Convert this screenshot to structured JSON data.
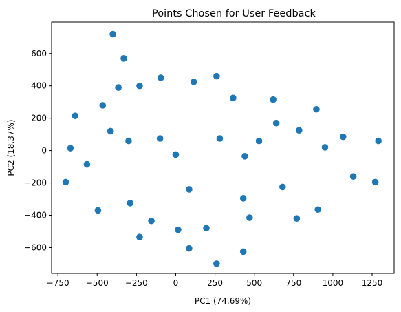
{
  "chart_data": {
    "type": "scatter",
    "title": "Points Chosen for User Feedback",
    "xlabel": "PC1 (74.69%)",
    "ylabel": "PC2 (18.37%)",
    "xlim": [
      -790,
      1390
    ],
    "ylim": [
      -760,
      795
    ],
    "xticks": [
      -750,
      -500,
      -250,
      0,
      250,
      500,
      750,
      1000,
      1250
    ],
    "yticks": [
      -600,
      -400,
      -200,
      0,
      200,
      400,
      600
    ],
    "grid": false,
    "color": "#1f77b4",
    "points": [
      {
        "x": -400,
        "y": 720
      },
      {
        "x": -330,
        "y": 570
      },
      {
        "x": -95,
        "y": 450
      },
      {
        "x": 260,
        "y": 460
      },
      {
        "x": 115,
        "y": 425
      },
      {
        "x": -230,
        "y": 400
      },
      {
        "x": -365,
        "y": 390
      },
      {
        "x": 365,
        "y": 325
      },
      {
        "x": 620,
        "y": 315
      },
      {
        "x": -465,
        "y": 280
      },
      {
        "x": -640,
        "y": 215
      },
      {
        "x": 895,
        "y": 255
      },
      {
        "x": 640,
        "y": 170
      },
      {
        "x": 785,
        "y": 125
      },
      {
        "x": -415,
        "y": 120
      },
      {
        "x": -300,
        "y": 60
      },
      {
        "x": -100,
        "y": 75
      },
      {
        "x": 280,
        "y": 75
      },
      {
        "x": 530,
        "y": 60
      },
      {
        "x": 1065,
        "y": 85
      },
      {
        "x": 1290,
        "y": 60
      },
      {
        "x": -670,
        "y": 15
      },
      {
        "x": 950,
        "y": 20
      },
      {
        "x": 0,
        "y": -25
      },
      {
        "x": 440,
        "y": -35
      },
      {
        "x": -565,
        "y": -85
      },
      {
        "x": -700,
        "y": -195
      },
      {
        "x": 1130,
        "y": -160
      },
      {
        "x": 1270,
        "y": -195
      },
      {
        "x": 85,
        "y": -240
      },
      {
        "x": 680,
        "y": -225
      },
      {
        "x": -495,
        "y": -370
      },
      {
        "x": -290,
        "y": -325
      },
      {
        "x": 430,
        "y": -295
      },
      {
        "x": 905,
        "y": -365
      },
      {
        "x": -155,
        "y": -435
      },
      {
        "x": 470,
        "y": -415
      },
      {
        "x": 770,
        "y": -420
      },
      {
        "x": 15,
        "y": -490
      },
      {
        "x": 195,
        "y": -480
      },
      {
        "x": -230,
        "y": -535
      },
      {
        "x": 85,
        "y": -605
      },
      {
        "x": 430,
        "y": -625
      },
      {
        "x": 260,
        "y": -700
      }
    ]
  }
}
